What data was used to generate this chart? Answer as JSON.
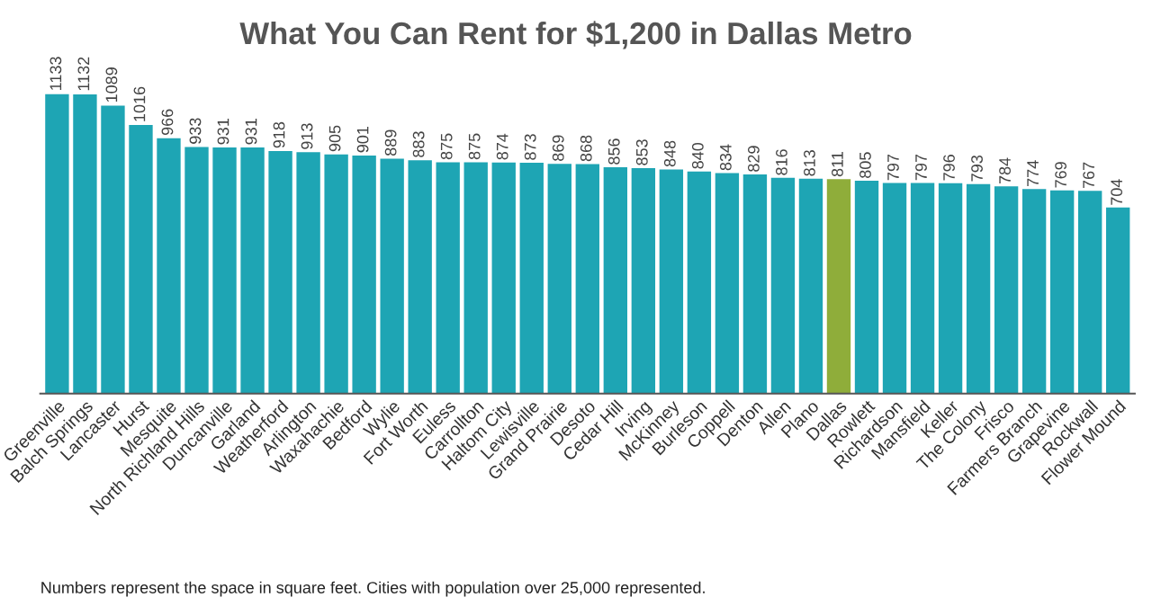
{
  "chart_data": {
    "type": "bar",
    "title": "What You Can Rent for $1,200 in Dallas Metro",
    "categories": [
      "Greenville",
      "Balch Springs",
      "Lancaster",
      "Hurst",
      "Mesquite",
      "North Richland Hills",
      "Duncanville",
      "Garland",
      "Weatherford",
      "Arlington",
      "Waxahachie",
      "Bedford",
      "Wylie",
      "Fort Worth",
      "Euless",
      "Carrollton",
      "Haltom City",
      "Lewisville",
      "Grand Prairie",
      "Desoto",
      "Cedar Hill",
      "Irving",
      "McKinney",
      "Burleson",
      "Coppell",
      "Denton",
      "Allen",
      "Plano",
      "Dallas",
      "Rowlett",
      "Richardson",
      "Mansfield",
      "Keller",
      "The Colony",
      "Frisco",
      "Farmers Branch",
      "Grapevine",
      "Rockwall",
      "Flower Mound"
    ],
    "values": [
      1133,
      1132,
      1089,
      1016,
      966,
      933,
      931,
      931,
      918,
      913,
      905,
      901,
      889,
      883,
      875,
      875,
      874,
      873,
      869,
      868,
      856,
      853,
      848,
      840,
      834,
      829,
      816,
      813,
      811,
      805,
      797,
      797,
      796,
      793,
      784,
      774,
      769,
      767,
      704
    ],
    "colors": [
      "#1ea5b4",
      "#1ea5b4",
      "#1ea5b4",
      "#1ea5b4",
      "#1ea5b4",
      "#1ea5b4",
      "#1ea5b4",
      "#1ea5b4",
      "#1ea5b4",
      "#1ea5b4",
      "#1ea5b4",
      "#1ea5b4",
      "#1ea5b4",
      "#1ea5b4",
      "#1ea5b4",
      "#1ea5b4",
      "#1ea5b4",
      "#1ea5b4",
      "#1ea5b4",
      "#1ea5b4",
      "#1ea5b4",
      "#1ea5b4",
      "#1ea5b4",
      "#1ea5b4",
      "#1ea5b4",
      "#1ea5b4",
      "#1ea5b4",
      "#1ea5b4",
      "#8fad3a",
      "#1ea5b4",
      "#1ea5b4",
      "#1ea5b4",
      "#1ea5b4",
      "#1ea5b4",
      "#1ea5b4",
      "#1ea5b4",
      "#1ea5b4",
      "#1ea5b4",
      "#1ea5b4"
    ],
    "data_labels": true,
    "grid": false,
    "legend": false,
    "annotations": [
      "Numbers represent the space in square feet. Cities with population over 25,000 represented."
    ]
  }
}
